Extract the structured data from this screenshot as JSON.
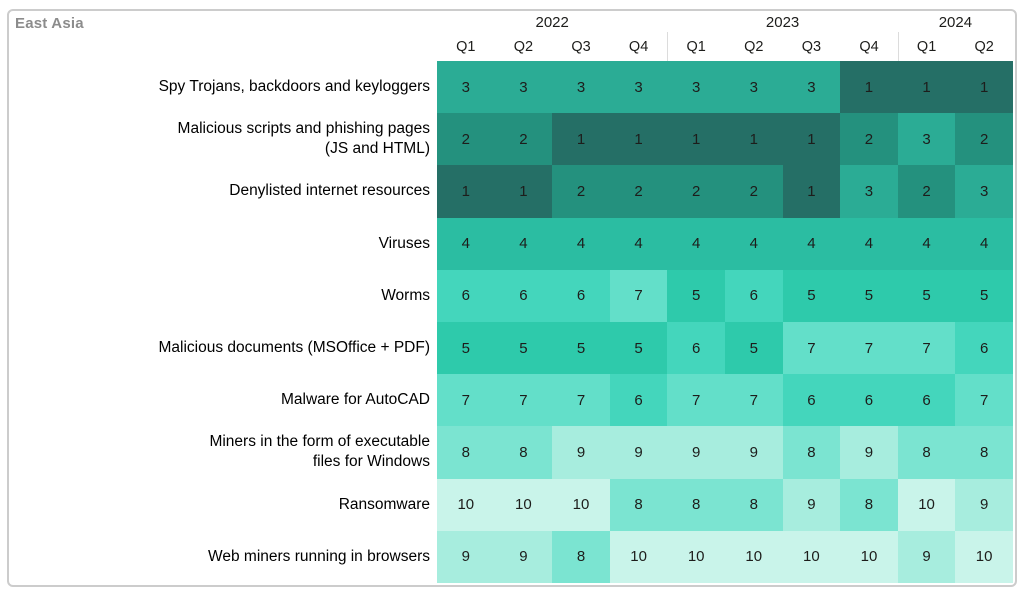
{
  "header": {
    "title": "East Asia"
  },
  "colors": {
    "title_text": "#8c8c8c",
    "cell_text": "#1d1d1b",
    "panel_border": "#cccccc",
    "year_separator": "#dcdcdc",
    "rank_ramp": {
      "1": "#256F66",
      "2": "#24917E",
      "3": "#2BAC95",
      "4": "#2BBDA2",
      "5": "#2ECAAB",
      "6": "#44D6BC",
      "7": "#63DFC9",
      "8": "#7BE4D1",
      "9": "#A7EDDE",
      "10": "#C9F4EA"
    }
  },
  "chart_data": {
    "type": "heatmap",
    "title": "East Asia",
    "subtitle": "",
    "value_meaning": "rank of threat per quarter; 1 = darkest teal, 10 = lightest teal",
    "years": [
      {
        "label": "2022",
        "quarters": [
          "Q1",
          "Q2",
          "Q3",
          "Q4"
        ]
      },
      {
        "label": "2023",
        "quarters": [
          "Q1",
          "Q2",
          "Q3",
          "Q4"
        ]
      },
      {
        "label": "2024",
        "quarters": [
          "Q1",
          "Q2"
        ]
      }
    ],
    "columns": [
      "2022 Q1",
      "2022 Q2",
      "2022 Q3",
      "2022 Q4",
      "2023 Q1",
      "2023 Q2",
      "2023 Q3",
      "2023 Q4",
      "2024 Q1",
      "2024 Q2"
    ],
    "rows": [
      {
        "label": "Spy Trojans, backdoors and keyloggers",
        "label_lines": [
          "Spy Trojans, backdoors and keyloggers"
        ],
        "values": [
          3,
          3,
          3,
          3,
          3,
          3,
          3,
          1,
          1,
          1
        ]
      },
      {
        "label": "Malicious scripts and phishing pages (JS and HTML)",
        "label_lines": [
          "Malicious scripts and phishing pages",
          "(JS and HTML)"
        ],
        "values": [
          2,
          2,
          1,
          1,
          1,
          1,
          1,
          2,
          3,
          2
        ]
      },
      {
        "label": "Denylisted internet resources",
        "label_lines": [
          "Denylisted internet resources"
        ],
        "values": [
          1,
          1,
          2,
          2,
          2,
          2,
          1,
          3,
          2,
          3
        ]
      },
      {
        "label": "Viruses",
        "label_lines": [
          "Viruses"
        ],
        "values": [
          4,
          4,
          4,
          4,
          4,
          4,
          4,
          4,
          4,
          4
        ]
      },
      {
        "label": "Worms",
        "label_lines": [
          "Worms"
        ],
        "values": [
          6,
          6,
          6,
          7,
          5,
          6,
          5,
          5,
          5,
          5
        ]
      },
      {
        "label": "Malicious documents (MSOffice + PDF)",
        "label_lines": [
          "Malicious documents (MSOffice + PDF)"
        ],
        "values": [
          5,
          5,
          5,
          5,
          6,
          5,
          7,
          7,
          7,
          6
        ]
      },
      {
        "label": "Malware for AutoCAD",
        "label_lines": [
          "Malware for AutoCAD"
        ],
        "values": [
          7,
          7,
          7,
          6,
          7,
          7,
          6,
          6,
          6,
          7
        ]
      },
      {
        "label": "Miners in the form of executable files for Windows",
        "label_lines": [
          "Miners in the form of executable",
          "files for Windows"
        ],
        "values": [
          8,
          8,
          9,
          9,
          9,
          9,
          8,
          9,
          8,
          8
        ]
      },
      {
        "label": "Ransomware",
        "label_lines": [
          "Ransomware"
        ],
        "values": [
          10,
          10,
          10,
          8,
          8,
          8,
          9,
          8,
          10,
          9
        ]
      },
      {
        "label": "Web miners running in browsers",
        "label_lines": [
          "Web miners running in browsers"
        ],
        "values": [
          9,
          9,
          8,
          10,
          10,
          10,
          10,
          10,
          9,
          10
        ]
      }
    ],
    "layout": {
      "legend": "none",
      "grid_lines": "none",
      "value_labels": "shown in every cell"
    }
  }
}
